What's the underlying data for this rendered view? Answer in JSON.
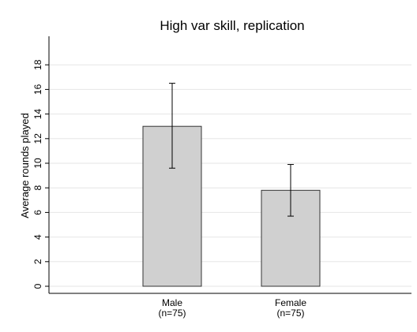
{
  "chart_data": {
    "type": "bar",
    "title": "High var skill, replication",
    "xlabel": "",
    "ylabel": "Average rounds played",
    "ylim": [
      0,
      20
    ],
    "yticks": [
      0,
      2,
      4,
      6,
      8,
      10,
      12,
      14,
      16,
      18
    ],
    "categories": [
      {
        "name": "Male",
        "n_label": "(n=75)"
      },
      {
        "name": "Female",
        "n_label": "(n=75)"
      }
    ],
    "values": [
      13.0,
      7.8
    ],
    "error_bars": [
      {
        "low": 9.6,
        "high": 16.5
      },
      {
        "low": 5.7,
        "high": 9.9
      }
    ],
    "grid": true,
    "bar_color": "#d0d0d0",
    "bar_edge_color": "#333333",
    "grid_color": "#e6e6e6"
  }
}
